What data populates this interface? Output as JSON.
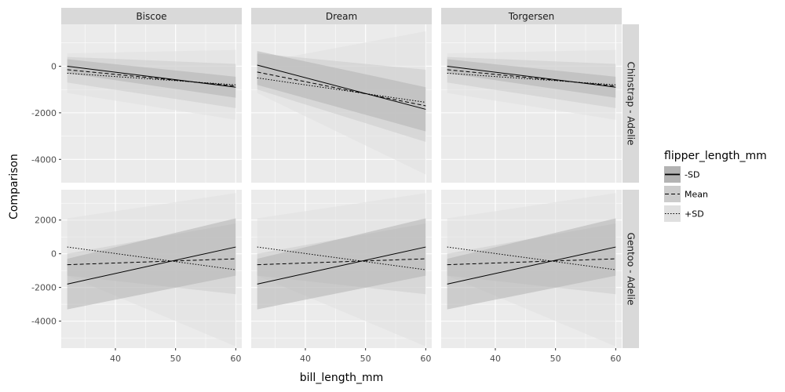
{
  "chart_data": {
    "type": "line",
    "xlabel": "bill_length_mm",
    "ylabel": "Comparison",
    "xlim": [
      31,
      61
    ],
    "x_ticks": [
      40,
      50,
      60
    ],
    "x_tick_labels": [
      "40",
      "50",
      "60"
    ],
    "column_facets": [
      "Biscoe",
      "Dream",
      "Torgersen"
    ],
    "row_facets": [
      {
        "label": "Chinstrap - Adelie",
        "ylim": [
          -5000,
          1800
        ],
        "y_ticks": [
          0,
          -2000,
          -4000
        ],
        "y_tick_labels": [
          "0",
          "-2000",
          "-4000"
        ]
      },
      {
        "label": "Gentoo - Adelie",
        "ylim": [
          -5600,
          3800
        ],
        "y_ticks": [
          2000,
          0,
          -2000,
          -4000
        ],
        "y_tick_labels": [
          "2000",
          "0",
          "-2000",
          "-4000"
        ]
      }
    ],
    "legend": {
      "title": "flipper_length_mm",
      "placement": "right",
      "entries": [
        {
          "label": "-SD",
          "linestyle": "solid"
        },
        {
          "label": "Mean",
          "linestyle": "dashed"
        },
        {
          "label": "+SD",
          "linestyle": "dotted"
        }
      ]
    },
    "colors": {
      "panel_background": "#ebebeb",
      "strip_background": "#d9d9d9",
      "grid": "#ffffff",
      "line": "#000000",
      "ribbon_sd_minus": "#b3b3b3",
      "ribbon_mean": "#cccccc",
      "ribbon_sd_plus": "#e0e0e0"
    },
    "x": [
      32,
      60
    ],
    "panels": [
      {
        "row": "Chinstrap - Adelie",
        "col": "Biscoe",
        "series": [
          {
            "name": "-SD",
            "y": [
              0,
              -900
            ],
            "lower": [
              -300,
              -1350
            ],
            "upper": [
              300,
              -450
            ]
          },
          {
            "name": "Mean",
            "y": [
              -150,
              -850
            ],
            "lower": [
              -700,
              -1800
            ],
            "upper": [
              400,
              100
            ]
          },
          {
            "name": "+SD",
            "y": [
              -300,
              -800
            ],
            "lower": [
              -1150,
              -2300
            ],
            "upper": [
              550,
              700
            ]
          }
        ]
      },
      {
        "row": "Chinstrap - Adelie",
        "col": "Dream",
        "series": [
          {
            "name": "-SD",
            "y": [
              50,
              -1850
            ],
            "lower": [
              -800,
              -2800
            ],
            "upper": [
              650,
              -900
            ]
          },
          {
            "name": "Mean",
            "y": [
              -250,
              -1700
            ],
            "lower": [
              -1000,
              -3250
            ],
            "upper": [
              550,
              -150
            ]
          },
          {
            "name": "+SD",
            "y": [
              -500,
              -1550
            ],
            "lower": [
              -1150,
              -4650
            ],
            "upper": [
              150,
              1500
            ]
          }
        ]
      },
      {
        "row": "Chinstrap - Adelie",
        "col": "Torgersen",
        "series": [
          {
            "name": "-SD",
            "y": [
              0,
              -900
            ],
            "lower": [
              -300,
              -1350
            ],
            "upper": [
              300,
              -450
            ]
          },
          {
            "name": "Mean",
            "y": [
              -150,
              -850
            ],
            "lower": [
              -700,
              -1800
            ],
            "upper": [
              400,
              100
            ]
          },
          {
            "name": "+SD",
            "y": [
              -300,
              -800
            ],
            "lower": [
              -1150,
              -2300
            ],
            "upper": [
              550,
              700
            ]
          }
        ]
      },
      {
        "row": "Gentoo - Adelie",
        "col": "Biscoe",
        "series": [
          {
            "name": "-SD",
            "y": [
              -1800,
              400
            ],
            "lower": [
              -3300,
              -1300
            ],
            "upper": [
              -300,
              2100
            ]
          },
          {
            "name": "Mean",
            "y": [
              -650,
              -300
            ],
            "lower": [
              -1300,
              -2400
            ],
            "upper": [
              0,
              1800
            ]
          },
          {
            "name": "+SD",
            "y": [
              400,
              -950
            ],
            "lower": [
              -1300,
              -5500
            ],
            "upper": [
              2100,
              3600
            ]
          }
        ]
      },
      {
        "row": "Gentoo - Adelie",
        "col": "Dream",
        "series": [
          {
            "name": "-SD",
            "y": [
              -1800,
              400
            ],
            "lower": [
              -3300,
              -1300
            ],
            "upper": [
              -300,
              2100
            ]
          },
          {
            "name": "Mean",
            "y": [
              -650,
              -300
            ],
            "lower": [
              -1300,
              -2400
            ],
            "upper": [
              0,
              1800
            ]
          },
          {
            "name": "+SD",
            "y": [
              400,
              -950
            ],
            "lower": [
              -1300,
              -5500
            ],
            "upper": [
              2100,
              3600
            ]
          }
        ]
      },
      {
        "row": "Gentoo - Adelie",
        "col": "Torgersen",
        "series": [
          {
            "name": "-SD",
            "y": [
              -1800,
              400
            ],
            "lower": [
              -3300,
              -1300
            ],
            "upper": [
              -300,
              2100
            ]
          },
          {
            "name": "Mean",
            "y": [
              -650,
              -300
            ],
            "lower": [
              -1300,
              -2400
            ],
            "upper": [
              0,
              1800
            ]
          },
          {
            "name": "+SD",
            "y": [
              400,
              -950
            ],
            "lower": [
              -1300,
              -5500
            ],
            "upper": [
              2100,
              3600
            ]
          }
        ]
      }
    ]
  }
}
